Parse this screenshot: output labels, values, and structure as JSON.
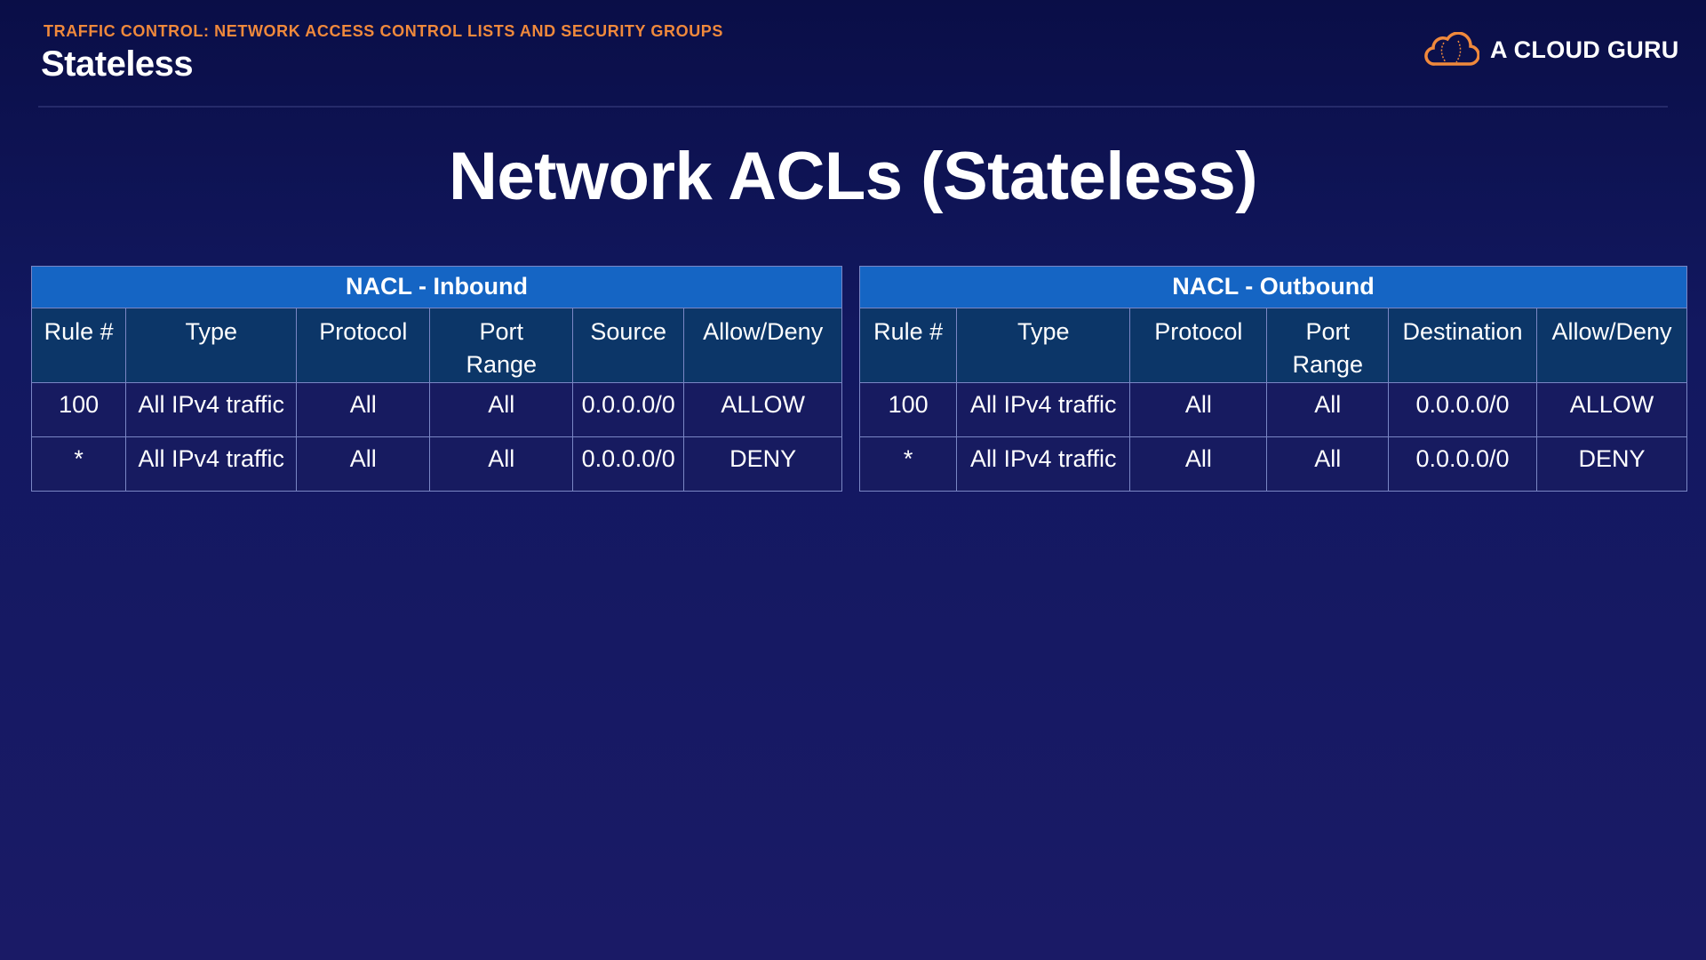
{
  "header": {
    "kicker": "TRAFFIC CONTROL: NETWORK ACCESS CONTROL LISTS AND SECURITY GROUPS",
    "section": "Stateless",
    "logo": "A CLOUD GURU",
    "accent": "#f0893c"
  },
  "title": "Network ACLs (Stateless)",
  "inbound": {
    "caption": "NACL - Inbound",
    "columns": [
      "Rule #",
      "Type",
      "Protocol",
      "Port Range",
      "Source",
      "Allow/Deny"
    ],
    "rows": [
      [
        "100",
        "All IPv4 traffic",
        "All",
        "All",
        "0.0.0.0/0",
        "ALLOW"
      ],
      [
        "*",
        "All IPv4 traffic",
        "All",
        "All",
        "0.0.0.0/0",
        "DENY"
      ]
    ]
  },
  "outbound": {
    "caption": "NACL - Outbound",
    "columns": [
      "Rule #",
      "Type",
      "Protocol",
      "Port Range",
      "Destination",
      "Allow/Deny"
    ],
    "rows": [
      [
        "100",
        "All IPv4 traffic",
        "All",
        "All",
        "0.0.0.0/0",
        "ALLOW"
      ],
      [
        "*",
        "All IPv4 traffic",
        "All",
        "All",
        "0.0.0.0/0",
        "DENY"
      ]
    ]
  }
}
